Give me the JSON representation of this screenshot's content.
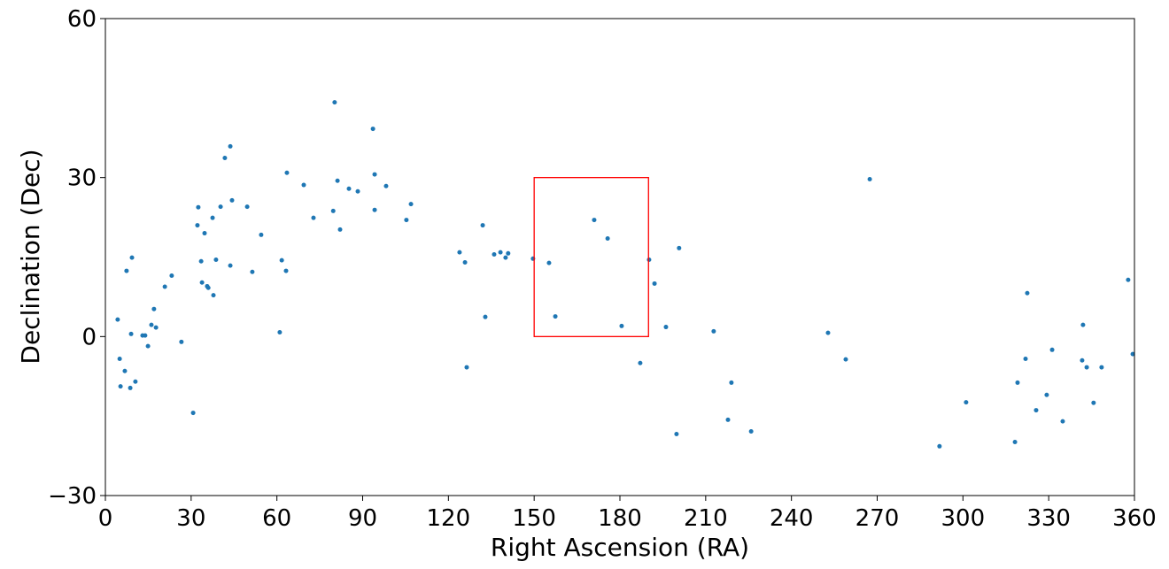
{
  "chart_data": {
    "type": "scatter",
    "x_label": "Right Ascension (RA)",
    "y_label": "Declination (Dec)",
    "color": "#1f77b4",
    "xlim": [
      0,
      360
    ],
    "xticks": [
      0,
      30,
      60,
      90,
      120,
      150,
      180,
      210,
      240,
      270,
      300,
      330,
      360
    ],
    "ylim": [
      -30,
      60
    ],
    "yticks": [
      {
        "value": -30,
        "label": "−30"
      },
      0,
      30,
      60
    ],
    "highlight_box": {
      "x": [
        150,
        190
      ],
      "y": [
        0,
        30
      ],
      "color": "#ff0000"
    },
    "x": [
      4.3,
      5.0,
      5.3,
      6.8,
      7.4,
      8.7,
      9.0,
      9.3,
      10.5,
      13.0,
      13.9,
      14.9,
      16.1,
      17.0,
      17.7,
      20.8,
      23.2,
      26.6,
      30.7,
      32.2,
      32.5,
      33.5,
      33.8,
      34.7,
      35.6,
      36.0,
      37.5,
      37.8,
      38.7,
      40.3,
      41.8,
      43.7,
      43.7,
      44.3,
      49.6,
      51.4,
      54.5,
      61.0,
      61.7,
      63.2,
      63.5,
      69.4,
      72.8,
      79.7,
      80.2,
      81.2,
      82.1,
      85.2,
      88.3,
      93.6,
      94.2,
      94.2,
      98.2,
      105.3,
      106.9,
      123.9,
      125.8,
      126.4,
      132.0,
      132.9,
      136.0,
      138.2,
      140.0,
      140.9,
      149.6,
      155.2,
      157.4,
      171.0,
      175.7,
      180.6,
      187.1,
      190.2,
      192.1,
      196.1,
      199.8,
      200.7,
      212.8,
      217.8,
      219.0,
      225.9,
      252.8,
      259.0,
      267.4,
      291.8,
      301.1,
      318.2,
      319.1,
      321.9,
      322.5,
      325.6,
      329.3,
      331.2,
      334.9,
      342.0,
      341.7,
      343.3,
      345.7,
      348.5,
      357.8,
      359.4
    ],
    "values": [
      3.2,
      -4.2,
      -9.4,
      -6.5,
      12.4,
      -9.7,
      0.5,
      14.9,
      -8.5,
      0.2,
      0.2,
      -1.8,
      2.2,
      5.2,
      1.7,
      9.4,
      11.5,
      -1.0,
      -14.4,
      21.0,
      24.4,
      14.2,
      10.2,
      19.5,
      9.5,
      9.2,
      22.4,
      7.8,
      14.5,
      24.5,
      33.7,
      35.9,
      13.4,
      25.7,
      24.5,
      12.2,
      19.2,
      0.8,
      14.4,
      12.4,
      30.9,
      28.6,
      22.4,
      23.7,
      44.2,
      29.4,
      20.2,
      27.9,
      27.4,
      39.2,
      30.6,
      23.9,
      28.4,
      22.0,
      25.0,
      15.9,
      14.0,
      -5.8,
      21.0,
      3.7,
      15.5,
      15.9,
      14.9,
      15.7,
      14.7,
      13.9,
      3.8,
      22.0,
      18.5,
      2.0,
      -5.0,
      14.5,
      10.0,
      1.8,
      -18.4,
      16.7,
      1.0,
      -15.7,
      -8.7,
      -17.9,
      0.7,
      -4.3,
      29.7,
      -20.7,
      -12.4,
      -19.9,
      -8.7,
      -4.2,
      8.2,
      -13.9,
      -11.0,
      -2.5,
      -16.0,
      2.2,
      -4.5,
      -5.8,
      -12.5,
      -5.8,
      10.7,
      -3.3
    ]
  }
}
